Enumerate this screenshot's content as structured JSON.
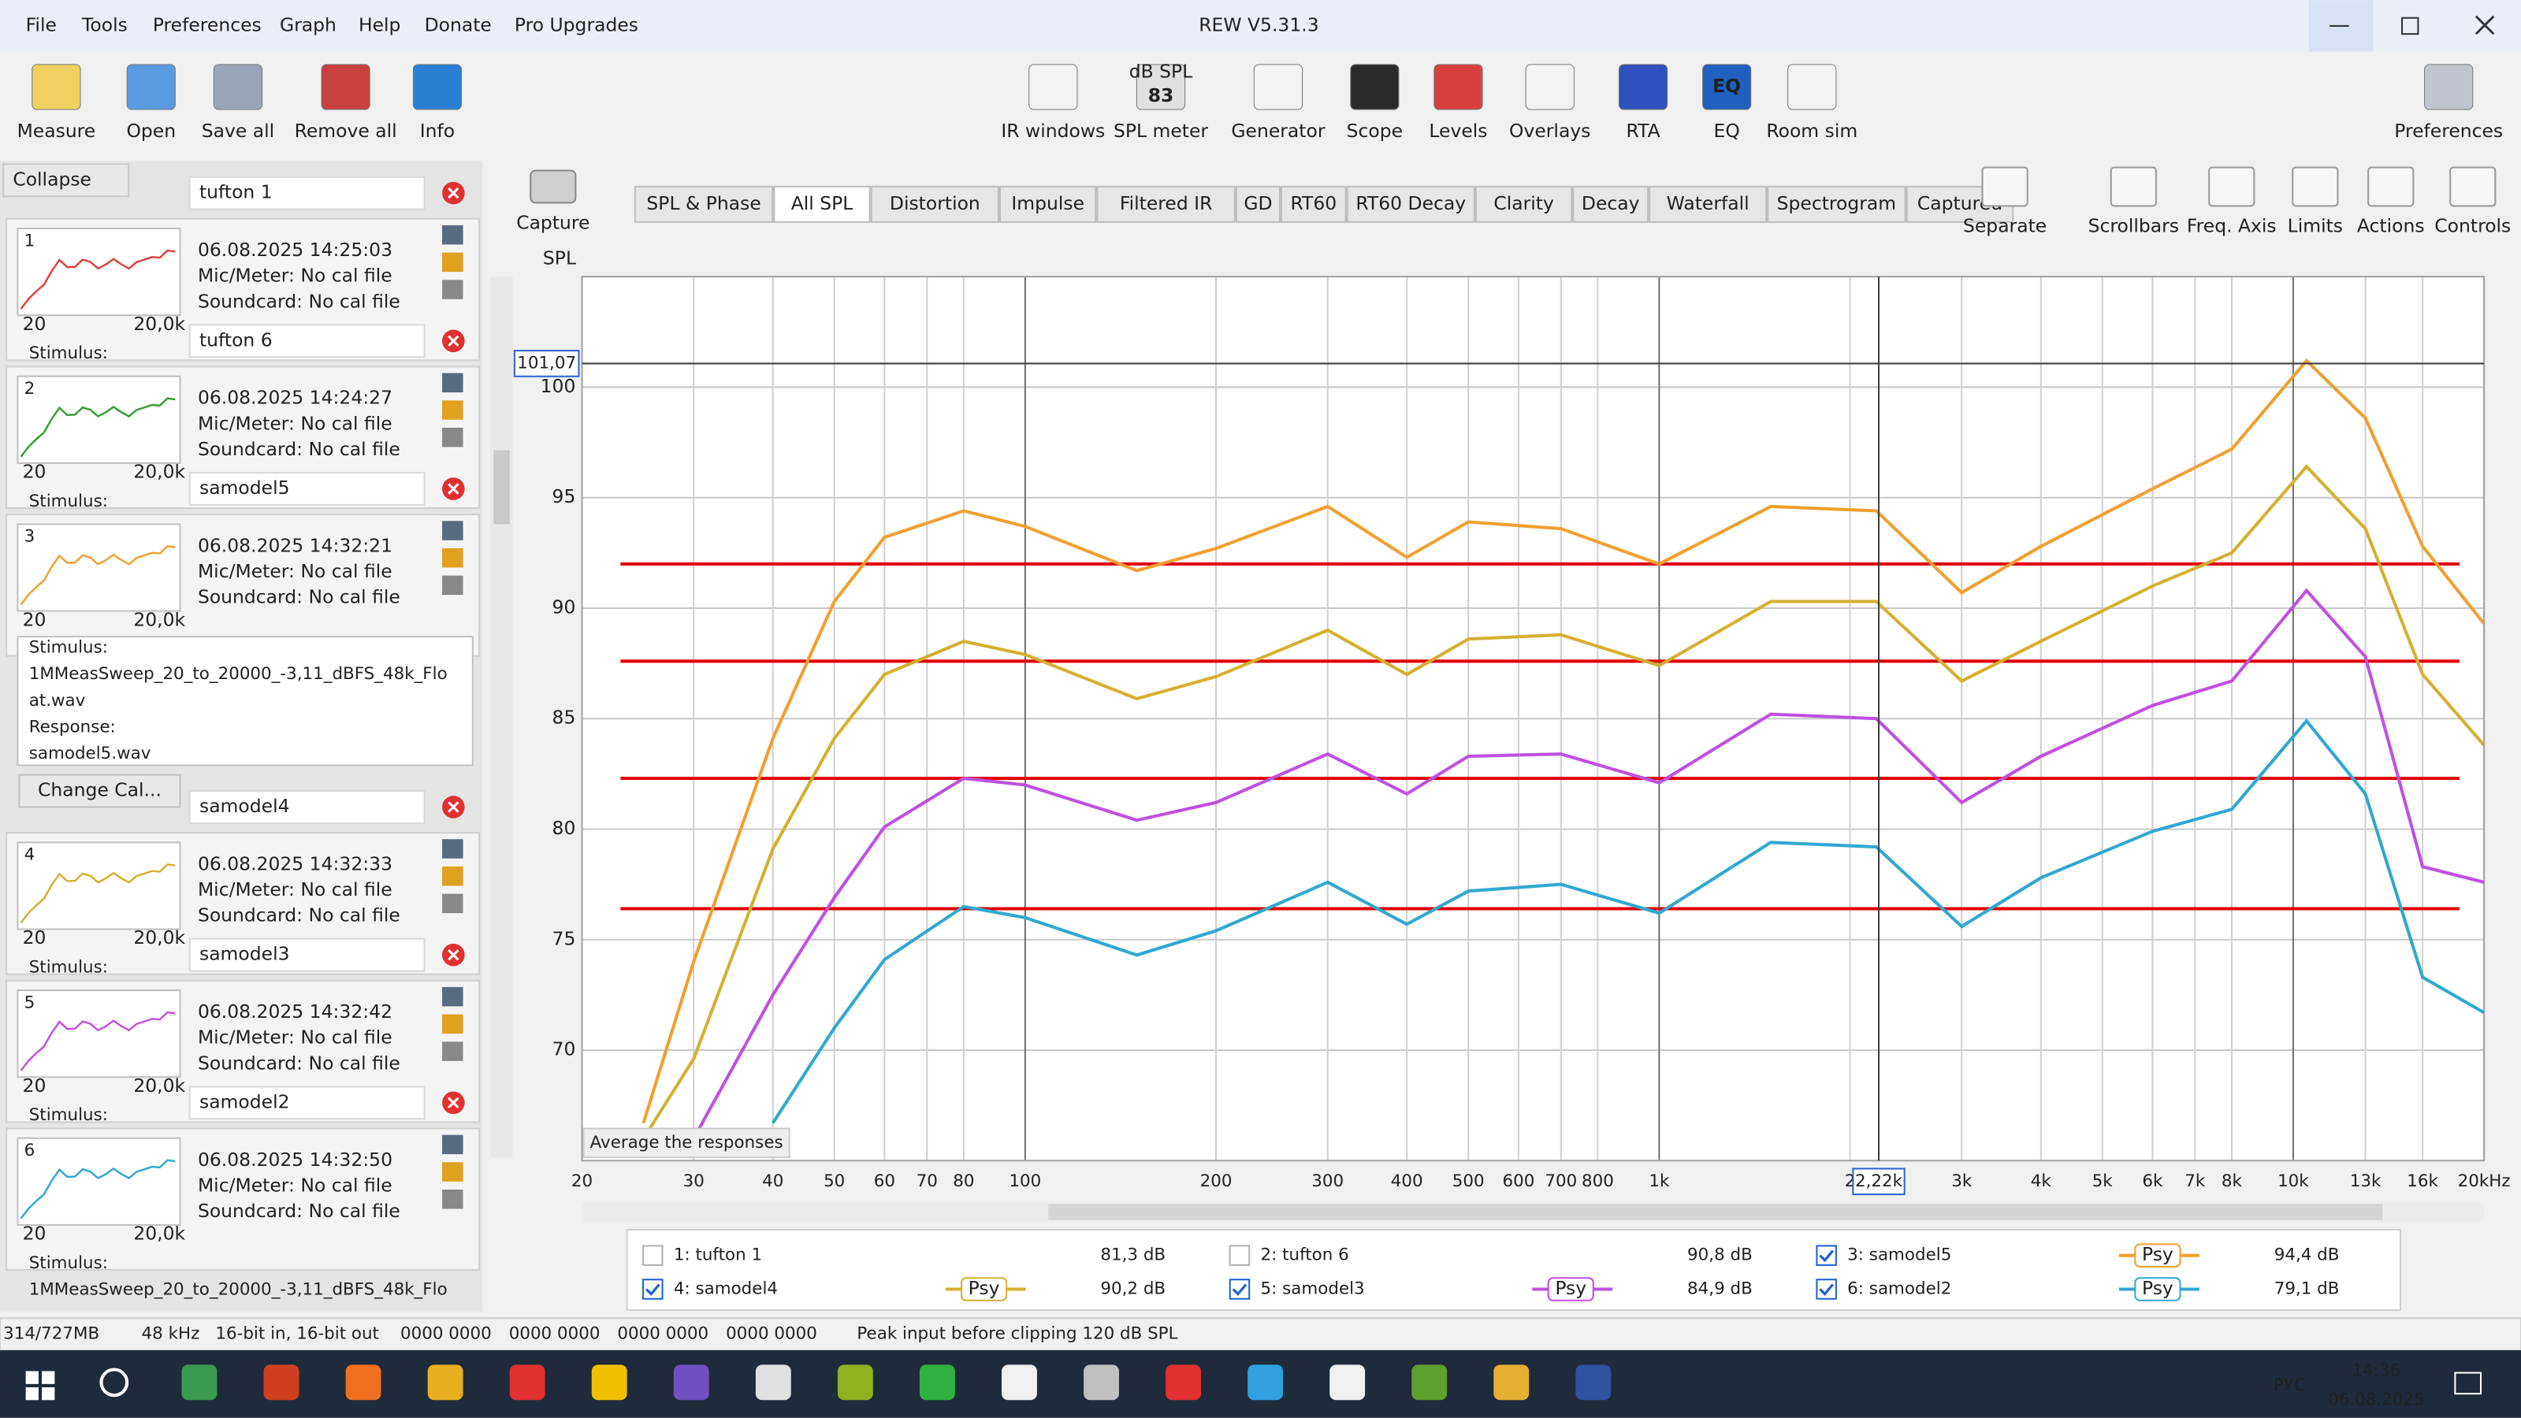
{
  "window": {
    "title": "REW V5.31.3",
    "menu": [
      "File",
      "Tools",
      "Preferences",
      "Graph",
      "Help",
      "Donate",
      "Pro Upgrades"
    ]
  },
  "toolbar": {
    "left": [
      "Measure",
      "Open",
      "Save all",
      "Remove all",
      "Info"
    ],
    "center": [
      "IR windows",
      "SPL meter",
      "Generator",
      "Scope",
      "Levels",
      "Overlays",
      "RTA",
      "EQ",
      "Room sim"
    ],
    "right": [
      "Preferences"
    ],
    "spl_icon": {
      "unit": "dB SPL",
      "reading": "83"
    },
    "eq_icon": "EQ"
  },
  "panel": {
    "collapse": "Collapse",
    "change_cal": "Change Cal...",
    "thumb_labels": [
      "20",
      "20,0k"
    ],
    "measurements": [
      {
        "index": "1",
        "name": "tufton 1",
        "date": "06.08.2025 14:25:03",
        "mic": "Mic/Meter: No cal file",
        "soundcard": "Soundcard: No cal file",
        "stimulus": "Stimulus:",
        "color": "#e04040"
      },
      {
        "index": "2",
        "name": "tufton 6",
        "date": "06.08.2025 14:24:27",
        "mic": "Mic/Meter: No cal file",
        "soundcard": "Soundcard: No cal file",
        "stimulus": "Stimulus:",
        "color": "#30a030"
      },
      {
        "index": "3",
        "name": "samodel5",
        "date": "06.08.2025 14:32:21",
        "mic": "Mic/Meter: No cal file",
        "soundcard": "Soundcard: No cal file",
        "color": "#f0a030",
        "details": [
          "Stimulus:",
          "1MMeasSweep_20_to_20000_-3,11_dBFS_48k_Flo",
          "at.wav",
          "Response:",
          "samodel5.wav"
        ]
      },
      {
        "index": "4",
        "name": "samodel4",
        "date": "06.08.2025 14:32:33",
        "mic": "Mic/Meter: No cal file",
        "soundcard": "Soundcard: No cal file",
        "stimulus": "Stimulus:",
        "color": "#d4b030"
      },
      {
        "index": "5",
        "name": "samodel3",
        "date": "06.08.2025 14:32:42",
        "mic": "Mic/Meter: No cal file",
        "soundcard": "Soundcard: No cal file",
        "stimulus": "Stimulus:",
        "color": "#c050e0"
      },
      {
        "index": "6",
        "name": "samodel2",
        "date": "06.08.2025 14:32:50",
        "mic": "Mic/Meter: No cal file",
        "soundcard": "Soundcard: No cal file",
        "color": "#30a8d0",
        "details": [
          "Stimulus:",
          "1MMeasSweep_20_to_20000_-3,11_dBFS_48k_Flo"
        ]
      }
    ]
  },
  "graph": {
    "tabs": [
      "SPL & Phase",
      "All SPL",
      "Distortion",
      "Impulse",
      "Filtered IR",
      "GD",
      "RT60",
      "RT60 Decay",
      "Clarity",
      "Decay",
      "Waterfall",
      "Spectrogram",
      "Captured"
    ],
    "selected_tab": 1,
    "capture": "Capture",
    "buttons": [
      "Separate",
      "Scrollbars",
      "Freq. Axis",
      "Limits",
      "Actions",
      "Controls"
    ],
    "average": "Average the responses",
    "psy": "Psy"
  },
  "chart_data": {
    "type": "line",
    "y_label": "SPL",
    "xscale": "log",
    "grid": true,
    "x": [
      25,
      30,
      40,
      50,
      60,
      80,
      100,
      150,
      200,
      300,
      400,
      500,
      700,
      1000,
      1500,
      2200,
      3000,
      4000,
      6000,
      8000,
      10500,
      13000,
      16000,
      20000
    ],
    "xlim": [
      20,
      20000
    ],
    "ylim": [
      65,
      105
    ],
    "xticks": [
      20,
      30,
      40,
      50,
      60,
      70,
      80,
      100,
      200,
      300,
      400,
      500,
      600,
      700,
      800,
      {
        "value": 1000,
        "label": "1k"
      },
      {
        "value": 2000,
        "label": "2"
      },
      {
        "value": 3000,
        "label": "3k"
      },
      {
        "value": 4000,
        "label": "4k"
      },
      {
        "value": 5000,
        "label": "5k"
      },
      {
        "value": 6000,
        "label": "6k"
      },
      {
        "value": 7000,
        "label": "7k"
      },
      {
        "value": 8000,
        "label": "8k"
      },
      {
        "value": 10000,
        "label": "10k"
      },
      {
        "value": 13000,
        "label": "13k"
      },
      {
        "value": 16000,
        "label": "16k"
      },
      {
        "value": 20000,
        "label": "20kHz"
      }
    ],
    "yticks": [
      70,
      75,
      80,
      85,
      90,
      95,
      100
    ],
    "series": [
      {
        "name": "3: samodel5",
        "color": "#f0a030",
        "level": "94,4 dB",
        "values": [
          66.7,
          74,
          84.1,
          90.3,
          93.2,
          94.4,
          93.7,
          91.7,
          92.7,
          94.6,
          92.3,
          93.9,
          93.6,
          92,
          94.6,
          94.4,
          90.7,
          92.8,
          95.4,
          97.2,
          101.2,
          98.6,
          92.8,
          89.3
        ]
      },
      {
        "name": "4: samodel4",
        "color": "#d4b030",
        "level": "90,2 dB",
        "values": [
          66,
          69.6,
          79.1,
          84.1,
          87,
          88.5,
          87.9,
          85.9,
          86.9,
          89,
          87,
          88.6,
          88.8,
          87.4,
          90.3,
          90.3,
          86.7,
          88.5,
          91,
          92.5,
          96.4,
          93.6,
          87,
          83.8
        ]
      },
      {
        "name": "5: samodel3",
        "color": "#c050e0",
        "level": "84,9 dB",
        "values": [
          null,
          66,
          72.5,
          76.9,
          80.1,
          82.3,
          82,
          80.4,
          81.2,
          83.4,
          81.6,
          83.3,
          83.4,
          82.1,
          85.2,
          85,
          81.2,
          83.3,
          85.6,
          86.7,
          90.8,
          87.8,
          78.3,
          77.6
        ]
      },
      {
        "name": "6: samodel2",
        "color": "#30a8d0",
        "level": "79,1 dB",
        "values": [
          null,
          null,
          66.7,
          71,
          74.1,
          76.5,
          76,
          74.3,
          75.4,
          77.6,
          75.7,
          77.2,
          77.5,
          76.2,
          79.4,
          79.2,
          75.6,
          77.8,
          79.9,
          80.9,
          84.9,
          81.6,
          73.3,
          71.7
        ]
      }
    ],
    "unchecked": [
      {
        "name": "1: tufton 1",
        "color": "#e04040",
        "level": "81,3 dB"
      },
      {
        "name": "2: tufton 6",
        "color": "#30a030",
        "level": "90,8 dB"
      }
    ],
    "reference_lines": {
      "color": "#e00000",
      "values": [
        92,
        87.6,
        82.3,
        76.4
      ],
      "xrange": [
        23,
        18300
      ]
    },
    "cursor": {
      "x": 2220,
      "y": 101.07,
      "x_label": "2,22k",
      "y_label": "101,07"
    }
  },
  "status": {
    "memory": "314/727MB",
    "rate": "48 kHz",
    "bits": "16-bit in, 16-bit out",
    "meters": [
      "0000 0000",
      "0000 0000",
      "0000 0000",
      "0000 0000"
    ],
    "peak": "Peak input before clipping 120 dB SPL"
  },
  "taskbar": {
    "time": "14:36",
    "date": "06.08.2025",
    "lang": "РУС"
  }
}
